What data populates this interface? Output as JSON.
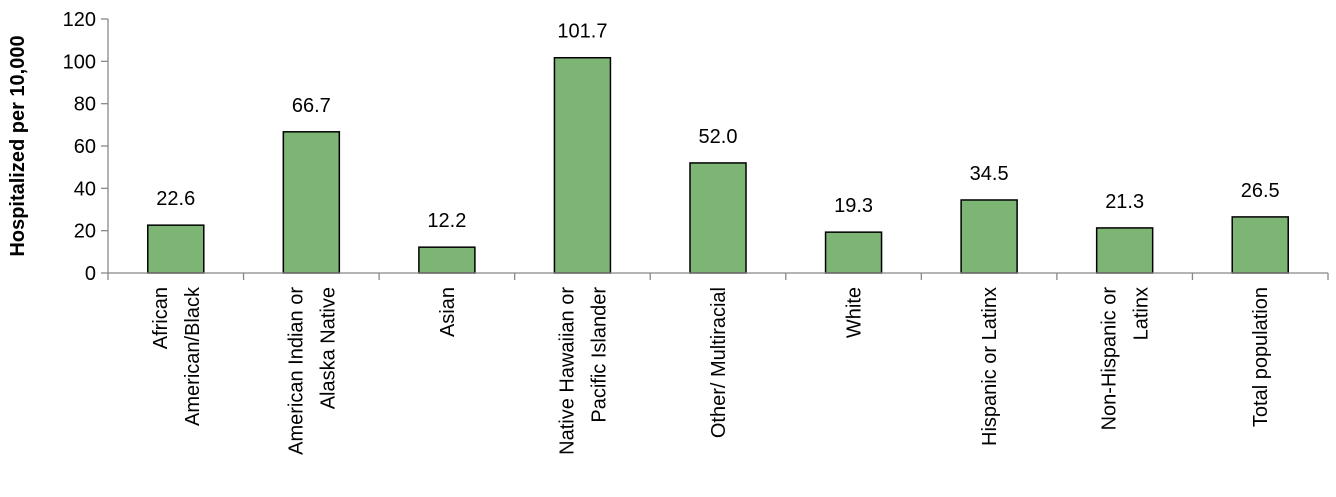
{
  "chart_data": {
    "type": "bar",
    "title": "",
    "xlabel": "",
    "ylabel": "Hospitalized per 10,000",
    "ylim": [
      0,
      120
    ],
    "yticks": [
      0,
      20,
      40,
      60,
      80,
      100,
      120
    ],
    "grid": false,
    "bar_color": "#7cb574",
    "bar_edge_color": "#000000",
    "categories": [
      [
        "African",
        "American/Black"
      ],
      [
        "American Indian or",
        "Alaska Native"
      ],
      [
        "Asian"
      ],
      [
        "Native Hawaiian or",
        "Pacific Islander"
      ],
      [
        "Other/ Multiracial"
      ],
      [
        "White"
      ],
      [
        "Hispanic or Latinx"
      ],
      [
        "Non-Hispanic or",
        "Latinx"
      ],
      [
        "Total population"
      ]
    ],
    "values": [
      22.6,
      66.7,
      12.2,
      101.7,
      52.0,
      19.3,
      34.5,
      21.3,
      26.5
    ],
    "data_labels": [
      "22.6",
      "66.7",
      "12.2",
      "101.7",
      "52.0",
      "19.3",
      "34.5",
      "21.3",
      "26.5"
    ]
  }
}
